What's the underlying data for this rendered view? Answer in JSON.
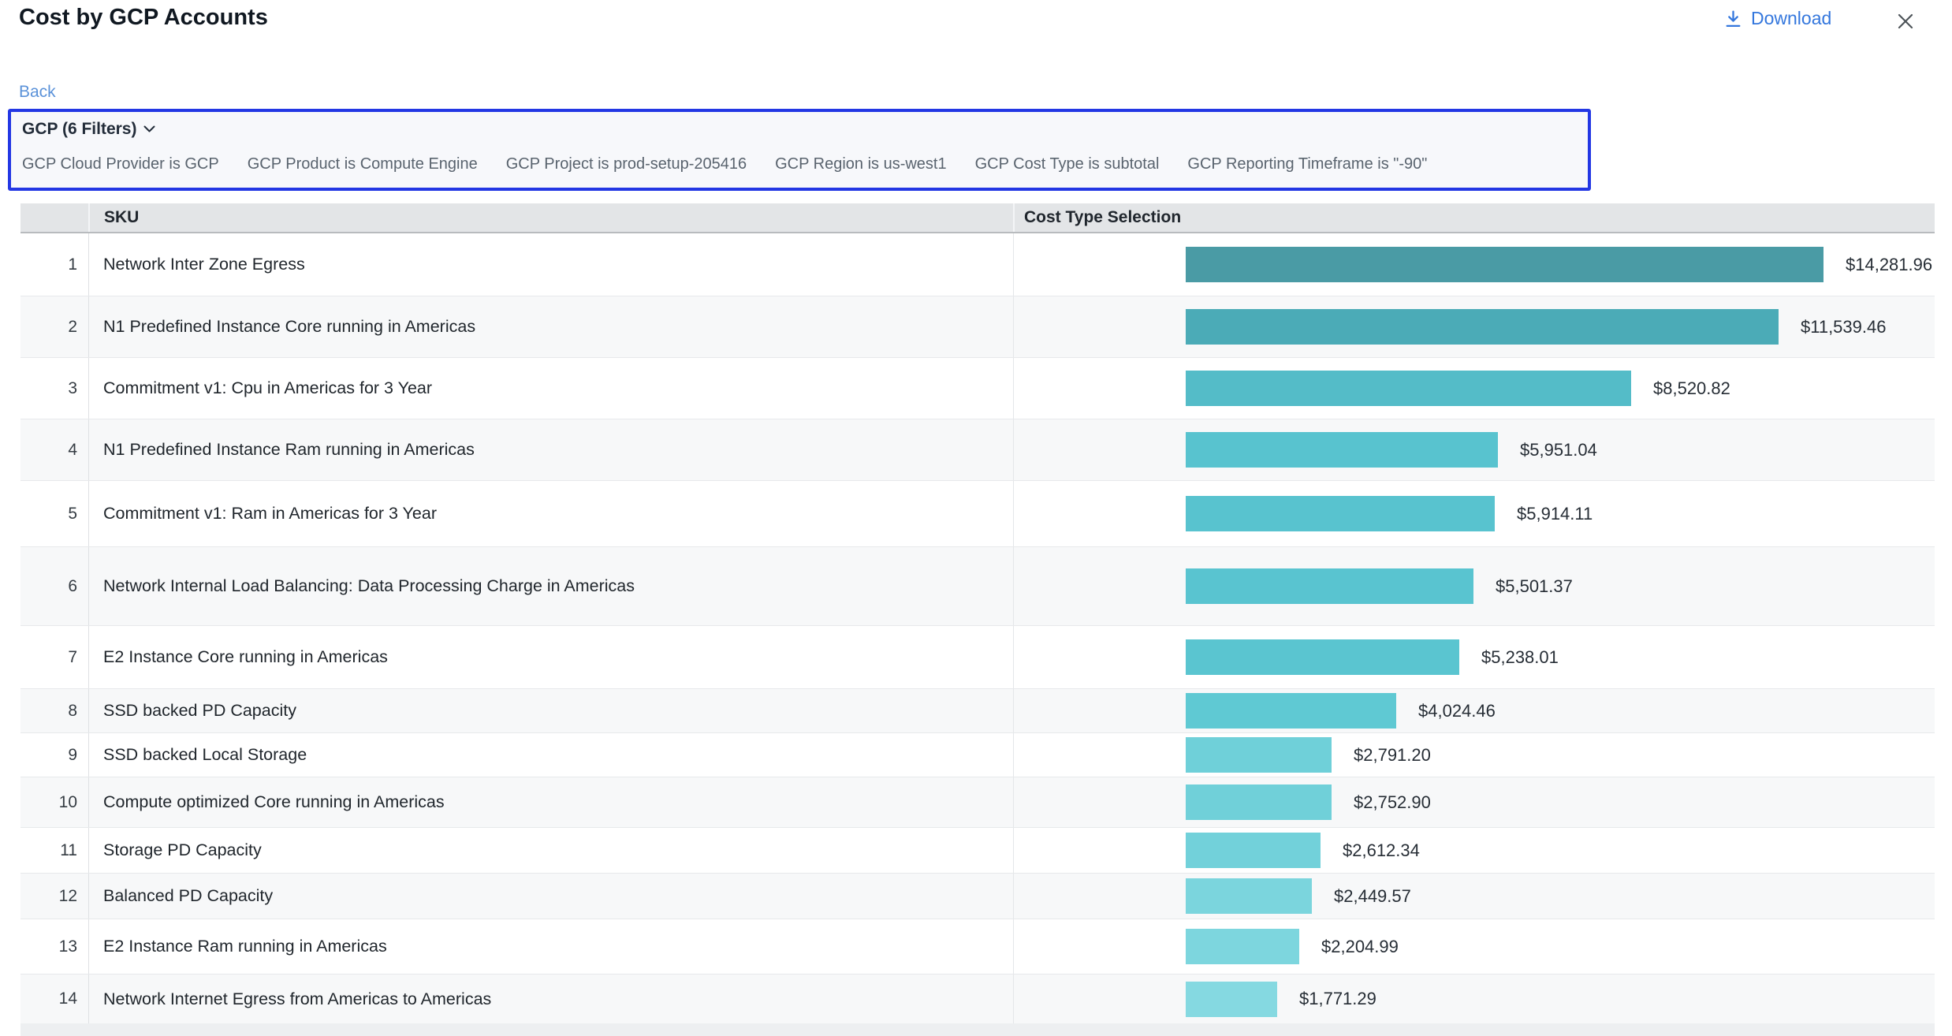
{
  "header": {
    "title": "Cost by GCP Accounts",
    "download_label": "Download"
  },
  "nav": {
    "back_label": "Back"
  },
  "filter_panel": {
    "summary": "GCP (6 Filters)",
    "conditions": [
      "GCP Cloud Provider is GCP",
      "GCP Product is Compute Engine",
      "GCP Project is prod-setup-205416",
      "GCP Region is us-west1",
      "GCP Cost Type is subtotal",
      "GCP Reporting Timeframe is \"-90\""
    ],
    "border_color": "#2337e4"
  },
  "table": {
    "columns": {
      "sku": "SKU",
      "cost_type": "Cost Type Selection"
    },
    "rows": [
      {
        "n": "1",
        "sku": "Network Inter Zone Egress",
        "amount": "$14,281.96"
      },
      {
        "n": "2",
        "sku": "N1 Predefined Instance Core running in Americas",
        "amount": "$11,539.46"
      },
      {
        "n": "3",
        "sku": "Commitment v1: Cpu in Americas for 3 Year",
        "amount": "$8,520.82"
      },
      {
        "n": "4",
        "sku": "N1 Predefined Instance Ram running in Americas",
        "amount": "$5,951.04"
      },
      {
        "n": "5",
        "sku": "Commitment v1: Ram in Americas for 3 Year",
        "amount": "$5,914.11"
      },
      {
        "n": "6",
        "sku": "Network Internal Load Balancing: Data Processing Charge in Americas",
        "amount": "$5,501.37"
      },
      {
        "n": "7",
        "sku": "E2 Instance Core running in Americas",
        "amount": "$5,238.01"
      },
      {
        "n": "8",
        "sku": "SSD backed PD Capacity",
        "amount": "$4,024.46"
      },
      {
        "n": "9",
        "sku": "SSD backed Local Storage",
        "amount": "$2,791.20"
      },
      {
        "n": "10",
        "sku": "Compute optimized Core running in Americas",
        "amount": "$2,752.90"
      },
      {
        "n": "11",
        "sku": "Storage PD Capacity",
        "amount": "$2,612.34"
      },
      {
        "n": "12",
        "sku": "Balanced PD Capacity",
        "amount": "$2,449.57"
      },
      {
        "n": "13",
        "sku": "E2 Instance Ram running in Americas",
        "amount": "$2,204.99"
      },
      {
        "n": "14",
        "sku": "Network Internet Egress from Americas to Americas",
        "amount": "$1,771.29"
      }
    ]
  },
  "chart_data": {
    "type": "bar",
    "orientation": "horizontal",
    "title": "Cost by GCP Accounts",
    "column_title": "Cost Type Selection",
    "categories": [
      "Network Inter Zone Egress",
      "N1 Predefined Instance Core running in Americas",
      "Commitment v1: Cpu in Americas for 3 Year",
      "N1 Predefined Instance Ram running in Americas",
      "Commitment v1: Ram in Americas for 3 Year",
      "Network Internal Load Balancing: Data Processing Charge in Americas",
      "E2 Instance Core running in Americas",
      "SSD backed PD Capacity",
      "SSD backed Local Storage",
      "Compute optimized Core running in Americas",
      "Storage PD Capacity",
      "Balanced PD Capacity",
      "E2 Instance Ram running in Americas",
      "Network Internet Egress from Americas to Americas"
    ],
    "values": [
      14281.96,
      11539.46,
      8520.82,
      5951.04,
      5914.11,
      5501.37,
      5238.01,
      4024.46,
      2791.2,
      2752.9,
      2612.34,
      2449.57,
      2204.99,
      1771.29
    ],
    "value_labels": [
      "$14,281.96",
      "$11,539.46",
      "$8,520.82",
      "$5,951.04",
      "$5,914.11",
      "$5,501.37",
      "$5,238.01",
      "$4,024.46",
      "$2,791.20",
      "$2,752.90",
      "$2,612.34",
      "$2,449.57",
      "$2,204.99",
      "$1,771.29"
    ],
    "bar_pcts": [
      100,
      93.0,
      69.8,
      49.0,
      48.5,
      45.1,
      42.9,
      33.0,
      22.9,
      22.9,
      21.1,
      19.8,
      17.8,
      14.3
    ],
    "bar_colors": [
      "#4a9ba5",
      "#4babb7",
      "#54bcc8",
      "#58c3cf",
      "#58c3cf",
      "#59c4d0",
      "#5ac5d0",
      "#5fc9d3",
      "#6fd0d9",
      "#70d0d9",
      "#72d1da",
      "#7bd5dd",
      "#7dd6de",
      "#85d9e1"
    ],
    "xlim": [
      0,
      14282
    ],
    "grid": false,
    "legend": "none",
    "data_labels": "outside-end"
  }
}
